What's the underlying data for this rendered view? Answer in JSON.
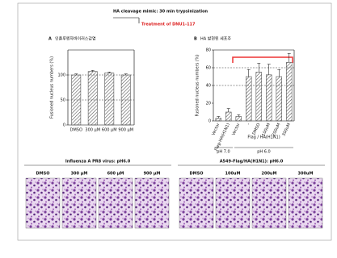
{
  "header": {
    "title": "HA cleavage mimic: 30 min trypsinization",
    "subtitle": "Treatment of DNU1-117"
  },
  "chart_data": [
    {
      "type": "bar",
      "panel": "A",
      "title": "인플루엔자바이러스감염",
      "ylabel": "Fusioned nucleus numbers (%)",
      "categories": [
        "DMSO",
        "300 μM",
        "600 μM",
        "900 μM"
      ],
      "values": [
        100,
        107,
        104,
        100
      ],
      "errors": [
        2,
        2,
        2,
        2
      ],
      "ylim": [
        0,
        150
      ],
      "yticks": [
        0,
        50,
        100
      ],
      "hlines": [
        50,
        100
      ],
      "color": "#555555"
    },
    {
      "type": "bar",
      "panel": "B",
      "title": "HA 발현된 세포주",
      "ylabel": "Fusioned nucleus numbers (%)",
      "categories": [
        "Vector",
        "Flag-HA(H1N1)",
        "Vector",
        "-",
        "DMSO",
        "100uM",
        "200uM",
        "300uM"
      ],
      "values": [
        3,
        10,
        5,
        50,
        55,
        52,
        50,
        66
      ],
      "errors": [
        2,
        4,
        2,
        8,
        10,
        12,
        8,
        10
      ],
      "ylim": [
        0,
        80
      ],
      "yticks": [
        0,
        20,
        40,
        60,
        80
      ],
      "hlines": [
        40,
        60
      ],
      "color": "#555555",
      "group_labels": [
        "pH 7.0",
        "pH 6.0",
        "Flag / HA(H1N1)"
      ]
    }
  ],
  "images": [
    {
      "title": "Influenza A PR8 virus: pH6.0",
      "labels": [
        "DMSO",
        "300 μM",
        "600 μM",
        "900 μM"
      ]
    },
    {
      "title": "A549-Flag/HA(H1N1): pH6.0",
      "labels": [
        "DMSO",
        "100uM",
        "200uM",
        "300uM"
      ]
    }
  ]
}
